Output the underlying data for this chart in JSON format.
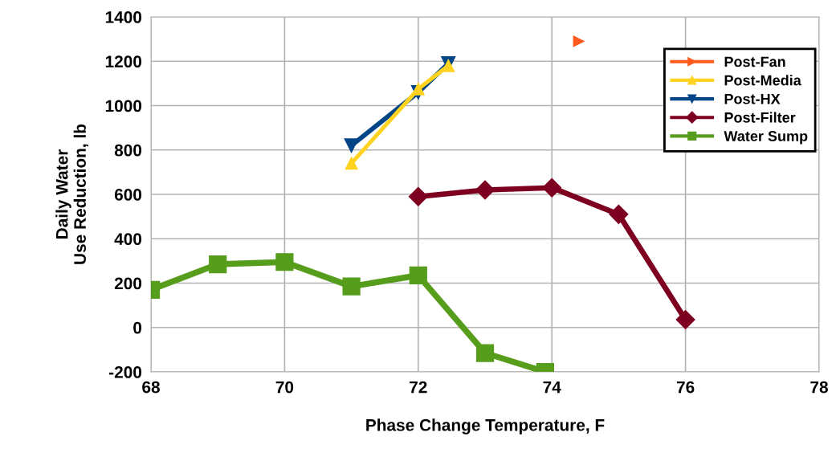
{
  "chart_data": {
    "type": "line",
    "xlabel": "Phase Change Temperature, F",
    "ylabel": "Daily Water\nUse Reduction, lb",
    "xlim": [
      68,
      78
    ],
    "xticks": [
      68,
      70,
      72,
      74,
      76,
      78
    ],
    "ylim": [
      -200,
      1400
    ],
    "yticks": [
      -200,
      0,
      200,
      400,
      600,
      800,
      1000,
      1200,
      1400
    ],
    "grid": true,
    "legend": "top right",
    "series": [
      {
        "name": "Post-Fan",
        "color": "#ff5a1e",
        "marker": "triangle_right",
        "x": [
          74.4
        ],
        "values": [
          1290
        ]
      },
      {
        "name": "Post-Media",
        "color": "#ffd320",
        "marker": "triangle",
        "x": [
          71,
          72,
          72.45
        ],
        "values": [
          740,
          1075,
          1180
        ]
      },
      {
        "name": "Post-HX",
        "color": "#004586",
        "marker": "triangle_down",
        "x": [
          71,
          72,
          72.45
        ],
        "values": [
          820,
          1060,
          1190
        ]
      },
      {
        "name": "Post-Filter",
        "color": "#7e0021",
        "marker": "diamond",
        "x": [
          72,
          73,
          74,
          75,
          76
        ],
        "values": [
          590,
          620,
          630,
          510,
          35
        ]
      },
      {
        "name": "Water Sump",
        "color": "#579d1c",
        "marker": "square",
        "x": [
          68,
          69,
          70,
          71,
          72,
          73,
          73.9
        ],
        "values": [
          170,
          285,
          295,
          185,
          235,
          -115,
          -200
        ]
      }
    ]
  }
}
